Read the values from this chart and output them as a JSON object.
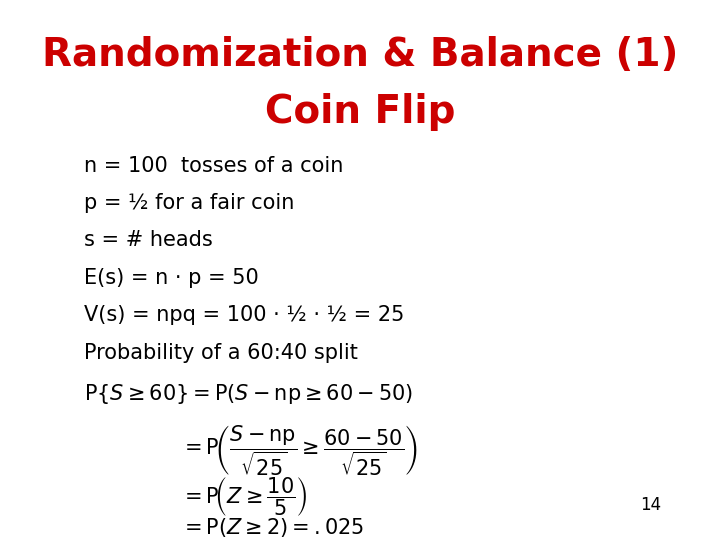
{
  "title_line1": "Randomization & Balance (1)",
  "title_line2": "Coin Flip",
  "title_color": "#CC0000",
  "title_fontsize": 28,
  "body_fontsize": 15,
  "math_fontsize": 15,
  "background_color": "#FFFFFF",
  "text_color": "#000000",
  "page_number": "14",
  "bullet_lines": [
    "n = 100  tosses of a coin",
    "p = ½ for a fair coin",
    "s = # heads",
    "E(s) = n · p = 50",
    "V(s) = npq = 100 · ½ · ½ = 25",
    "Probability of a 60:40 split"
  ]
}
